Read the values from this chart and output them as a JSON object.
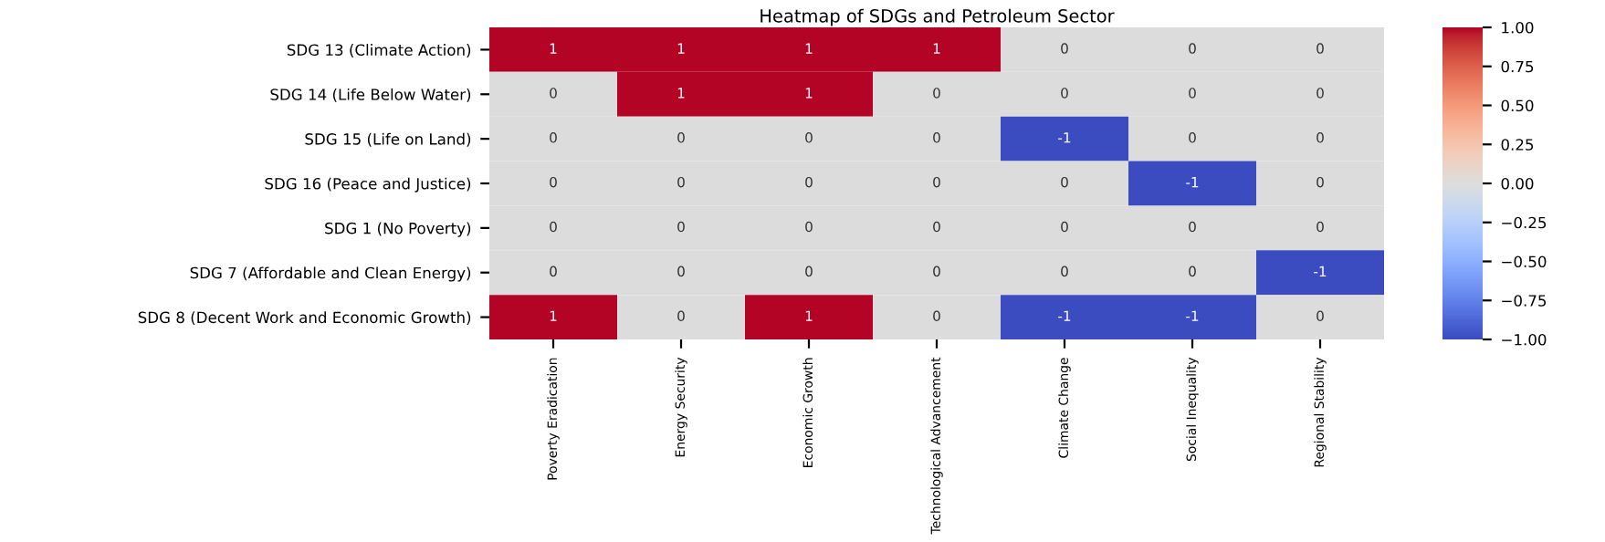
{
  "chart_data": {
    "type": "heatmap",
    "title": "Heatmap of SDGs and Petroleum Sector",
    "categories": [
      "Poverty Eradication",
      "Energy Security",
      "Economic Growth",
      "Technological Advancement",
      "Climate Change",
      "Social Inequality",
      "Regional Stability"
    ],
    "y_categories": [
      "SDG 13 (Climate Action)",
      "SDG 14 (Life Below Water)",
      "SDG 15 (Life on Land)",
      "SDG 16 (Peace and Justice)",
      "SDG 1 (No Poverty)",
      "SDG 7 (Affordable and Clean Energy)",
      "SDG 8 (Decent Work and Economic Growth)"
    ],
    "cells": [
      [
        1,
        1,
        1,
        1,
        0,
        0,
        0
      ],
      [
        0,
        1,
        1,
        0,
        0,
        0,
        0
      ],
      [
        0,
        0,
        0,
        0,
        -1,
        0,
        0
      ],
      [
        0,
        0,
        0,
        0,
        0,
        -1,
        0
      ],
      [
        0,
        0,
        0,
        0,
        0,
        0,
        0
      ],
      [
        0,
        0,
        0,
        0,
        0,
        0,
        -1
      ],
      [
        1,
        0,
        1,
        0,
        -1,
        -1,
        0
      ]
    ],
    "data_labels": true,
    "clim": [
      -1,
      1
    ],
    "cticks": [
      {
        "value": 1,
        "label": "1.00"
      },
      {
        "value": 0.75,
        "label": "0.75"
      },
      {
        "value": 0.5,
        "label": "0.50"
      },
      {
        "value": 0.25,
        "label": "0.25"
      },
      {
        "value": 0,
        "label": "0.00"
      },
      {
        "value": -0.25,
        "label": "−0.25"
      },
      {
        "value": -0.5,
        "label": "−0.50"
      },
      {
        "value": -0.75,
        "label": "−0.75"
      },
      {
        "value": -1,
        "label": "−1.00"
      }
    ]
  }
}
